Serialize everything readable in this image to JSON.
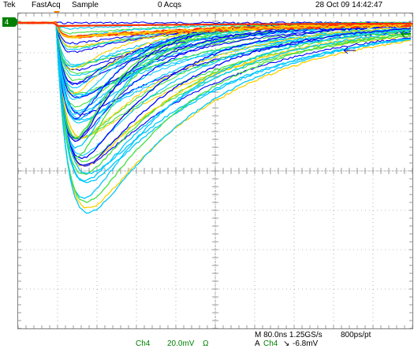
{
  "header": {
    "brand": "Tek",
    "mode": "FastAcq",
    "acq_mode": "Sample",
    "acqs": "0 Acqs",
    "datetime": "28 Oct 09 14:42:47"
  },
  "channel_marker": {
    "label": "4"
  },
  "footer": {
    "channel": "Ch4",
    "scale": "20.0mV",
    "impedance": "Ω",
    "timebase": "M 80.0ns 1.25GS/s",
    "resolution": "800ps/pt",
    "trigger_prefix": "A",
    "trigger_channel": "Ch4",
    "trigger_slope": "↘",
    "trigger_level": "-6.8mV"
  },
  "colors": {
    "trace_hot": "#ff3000",
    "trace_warm": "#ffd000",
    "trace_mid": "#40e040",
    "trace_cool": "#00c8ff",
    "trace_cold": "#0000ff",
    "channel": "#008000",
    "grid": "#808080"
  },
  "icons": {
    "trigger_level_arrow": "left-arrow-icon",
    "channel_arrow": "left-arrow-icon",
    "trigger_position": "triangle-down-icon"
  }
}
